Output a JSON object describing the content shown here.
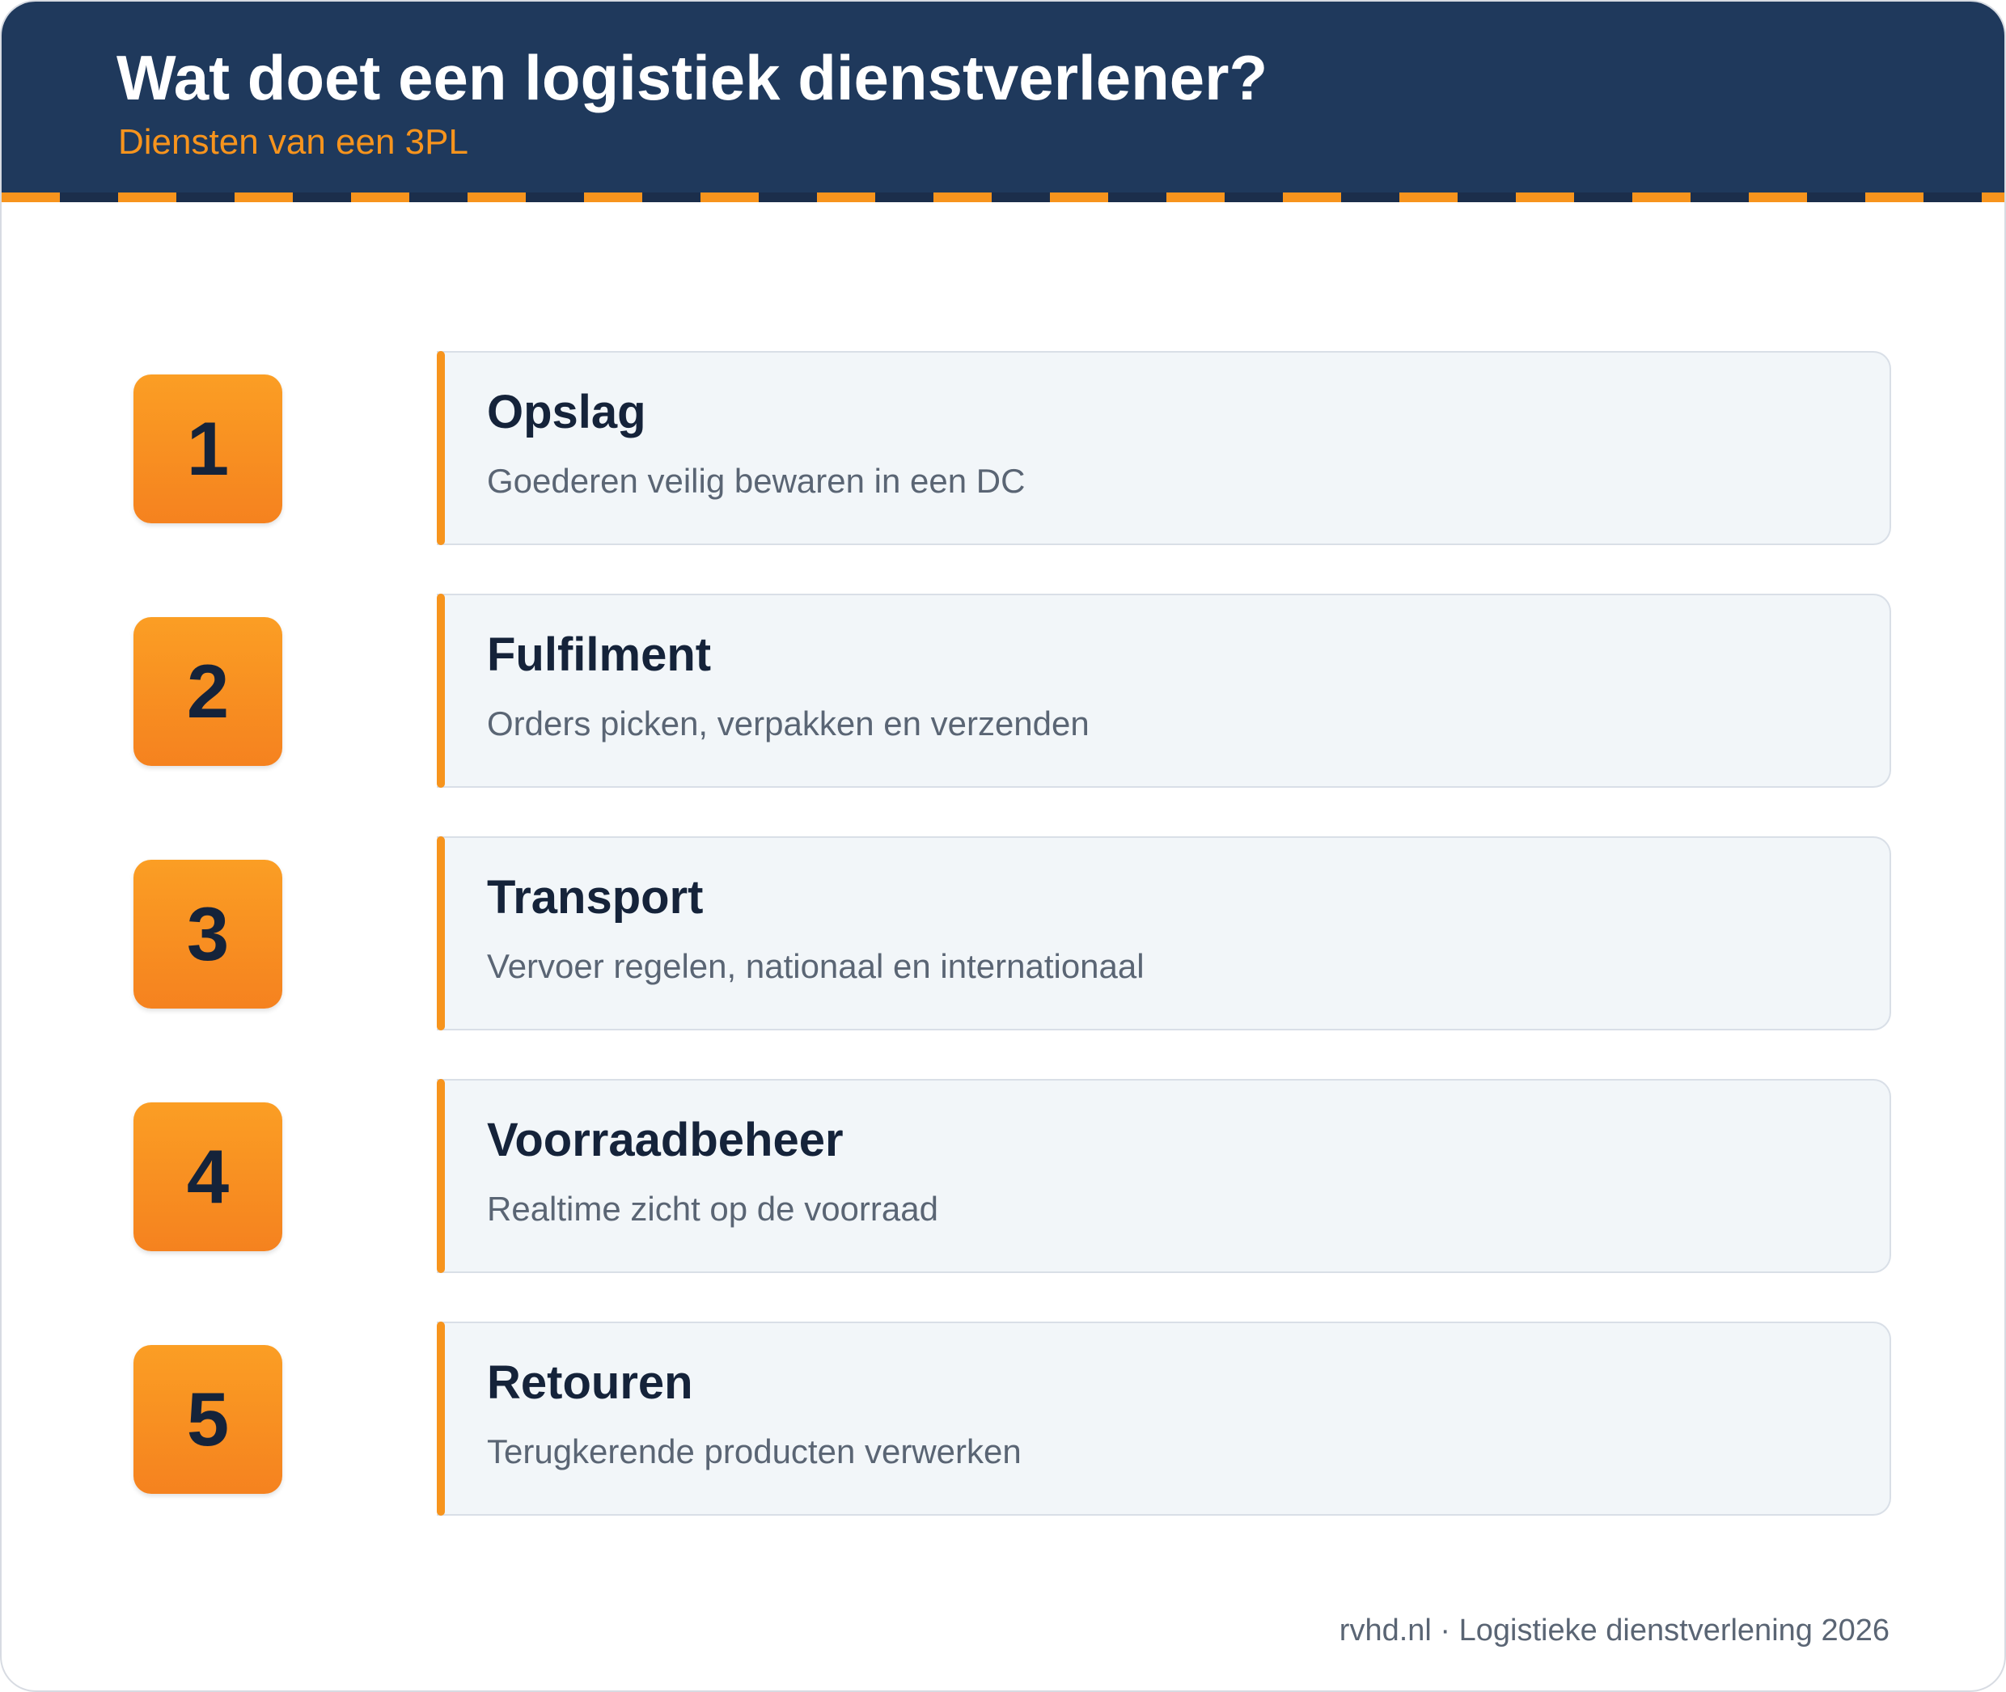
{
  "header": {
    "title": "Wat doet een logistiek dienstverlener?",
    "subtitle": "Diensten van een 3PL"
  },
  "services": [
    {
      "number": "1",
      "title": "Opslag",
      "description": "Goederen veilig bewaren in een DC"
    },
    {
      "number": "2",
      "title": "Fulfilment",
      "description": "Orders picken, verpakken en verzenden"
    },
    {
      "number": "3",
      "title": "Transport",
      "description": "Vervoer regelen, nationaal en internationaal"
    },
    {
      "number": "4",
      "title": "Voorraadbeheer",
      "description": "Realtime zicht op de voorraad"
    },
    {
      "number": "5",
      "title": "Retouren",
      "description": "Terugkerende producten verwerken"
    }
  ],
  "footer": {
    "text": "rvhd.nl · Logistieke dienstverlening 2026"
  },
  "colors": {
    "header_bg": "#1f395c",
    "accent": "#f7941d",
    "card_bg": "#f2f6f9",
    "dark_text": "#15233a",
    "muted_text": "#5a6574"
  }
}
